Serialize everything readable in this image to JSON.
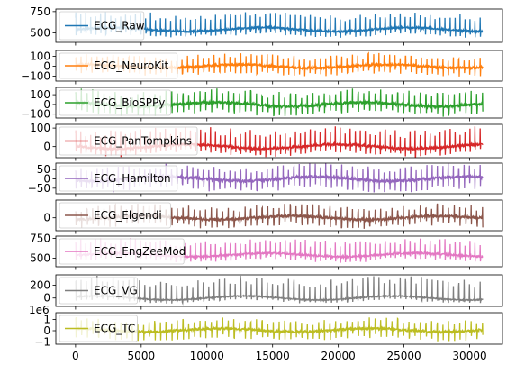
{
  "chart_data": {
    "type": "line",
    "layout": "stacked-subplots",
    "x_range": [
      0,
      31000
    ],
    "xlim": [
      -1500,
      32500
    ],
    "x_ticks": [
      0,
      5000,
      10000,
      15000,
      20000,
      25000,
      30000
    ],
    "x_tick_labels": [
      "0",
      "5000",
      "10000",
      "15000",
      "20000",
      "25000",
      "30000"
    ],
    "legend_position": "upper-left",
    "subplots": [
      {
        "series": "ECG_Raw",
        "color": "#1f77b4",
        "ylim": [
          390,
          780
        ],
        "y_ticks": [
          500,
          750
        ],
        "y_tick_labels": [
          "500",
          "750"
        ],
        "baseline": 540,
        "amplitude": [
          -80,
          200
        ],
        "offset_label": ""
      },
      {
        "series": "ECG_NeuroKit",
        "color": "#ff7f0e",
        "ylim": [
          -150,
          160
        ],
        "y_ticks": [
          -100,
          0,
          100
        ],
        "y_tick_labels": [
          "−100",
          "0",
          "100"
        ],
        "baseline": 0,
        "amplitude": [
          -90,
          120
        ],
        "offset_label": ""
      },
      {
        "series": "ECG_BioSPPy",
        "color": "#2ca02c",
        "ylim": [
          -140,
          175
        ],
        "y_ticks": [
          -100,
          0,
          100
        ],
        "y_tick_labels": [
          "−100",
          "0",
          "100"
        ],
        "baseline": 0,
        "amplitude": [
          -110,
          150
        ],
        "offset_label": ""
      },
      {
        "series": "ECG_PanTompkins",
        "color": "#d62728",
        "ylim": [
          -60,
          120
        ],
        "y_ticks": [
          0,
          100
        ],
        "y_tick_labels": [
          "0",
          "100"
        ],
        "baseline": 0,
        "amplitude": [
          -45,
          100
        ],
        "offset_label": ""
      },
      {
        "series": "ECG_Hamilton",
        "color": "#9467bd",
        "ylim": [
          -80,
          85
        ],
        "y_ticks": [
          -50,
          0,
          50
        ],
        "y_tick_labels": [
          "−50",
          "0",
          "50"
        ],
        "baseline": 0,
        "amplitude": [
          -65,
          75
        ],
        "offset_label": ""
      },
      {
        "series": "ECG_Elgendi",
        "color": "#8c564b",
        "ylim": [
          -40,
          55
        ],
        "y_ticks": [
          0
        ],
        "y_tick_labels": [
          "0"
        ],
        "baseline": 0,
        "amplitude": [
          -30,
          40
        ],
        "offset_label": ""
      },
      {
        "series": "ECG_EngZeeMod",
        "color": "#e377c2",
        "ylim": [
          390,
          780
        ],
        "y_ticks": [
          500,
          750
        ],
        "y_tick_labels": [
          "500",
          "750"
        ],
        "baseline": 540,
        "amplitude": [
          -80,
          200
        ],
        "offset_label": ""
      },
      {
        "series": "ECG_VG",
        "color": "#7f7f7f",
        "ylim": [
          -130,
          360
        ],
        "y_ticks": [
          0,
          200
        ],
        "y_tick_labels": [
          "0",
          "200"
        ],
        "baseline": 0,
        "amplitude": [
          -60,
          320
        ],
        "offset_label": ""
      },
      {
        "series": "ECG_TC",
        "color": "#bcbd22",
        "ylim": [
          -1.2,
          1.6
        ],
        "y_ticks": [
          -1,
          0,
          1
        ],
        "y_tick_labels": [
          "−1",
          "0",
          "1"
        ],
        "baseline": 0.05,
        "amplitude": [
          -0.85,
          1.0
        ],
        "offset_label": "1e6"
      }
    ]
  }
}
